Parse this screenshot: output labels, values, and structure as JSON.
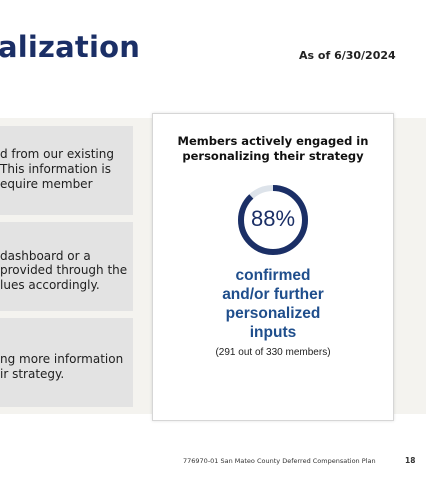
{
  "header": {
    "title": "alization",
    "as_of": "As of 6/30/2024"
  },
  "left_boxes": [
    {
      "lines": [
        "d from our existing",
        "This information is",
        "equire member"
      ]
    },
    {
      "lines": [
        "dashboard or a",
        "provided through the",
        "lues accordingly."
      ]
    },
    {
      "lines": [
        "ng more information",
        "ir strategy."
      ]
    }
  ],
  "card": {
    "title_line1": "Members actively engaged in",
    "title_line2": "personalizing their strategy",
    "percent": "88%",
    "percent_value": 0.88,
    "label_line1": "confirmed",
    "label_line2": "and/or further",
    "label_line3": "personalized",
    "label_line4": "inputs",
    "count_text": "(291 out of 330 members)"
  },
  "colors": {
    "navy": "#1b2f66",
    "donut_track": "#dde3ea",
    "label_blue": "#1f4e8c",
    "panel_bg": "#f4f3ef",
    "box_bg": "#e3e3e3"
  },
  "footer": {
    "doc_text": "776970-01 San Mateo County Deferred Compensation Plan",
    "page_number": "18"
  }
}
